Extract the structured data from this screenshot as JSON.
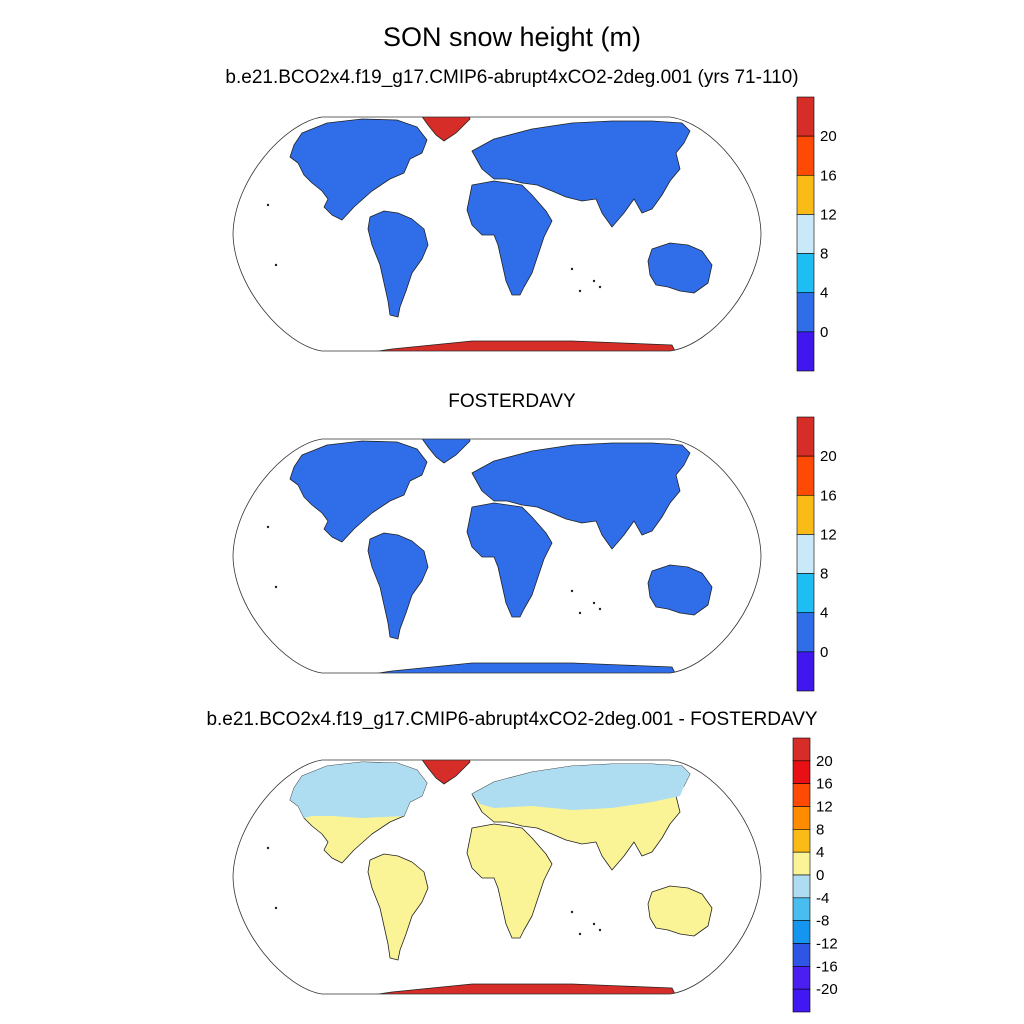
{
  "title": "SON snow height (m)",
  "panels": [
    {
      "title": "b.e21.BCO2x4.f19_g17.CMIP6-abrupt4xCO2-2deg.001 (yrs 71-110)",
      "colorbar": {
        "labels": [
          "20",
          "16",
          "12",
          "8",
          "4",
          "0"
        ],
        "colors": [
          "#d62d28",
          "#ff4a05",
          "#fbbb16",
          "#c9e8fa",
          "#1ebef4",
          "#2f6ee8",
          "#4117f0"
        ]
      },
      "fills": {
        "land": "#2f6ee8",
        "greenland": "#d62d28",
        "antarctica": "#d62d28"
      }
    },
    {
      "title": "FOSTERDAVY",
      "colorbar": {
        "labels": [
          "20",
          "16",
          "12",
          "8",
          "4",
          "0"
        ],
        "colors": [
          "#d62d28",
          "#ff4a05",
          "#fbbb16",
          "#c9e8fa",
          "#1ebef4",
          "#2f6ee8",
          "#4117f0"
        ]
      },
      "fills": {
        "land": "#2f6ee8",
        "greenland": "#2f6ee8",
        "antarctica": "#2f6ee8"
      }
    },
    {
      "title": "b.e21.BCO2x4.f19_g17.CMIP6-abrupt4xCO2-2deg.001 - FOSTERDAVY",
      "colorbar": {
        "labels": [
          "20",
          "16",
          "12",
          "8",
          "4",
          "0",
          "-4",
          "-8",
          "-12",
          "-16",
          "-20"
        ],
        "colors": [
          "#d62d28",
          "#e91015",
          "#ff4a05",
          "#ff8c00",
          "#fbbb16",
          "#fbf497",
          "#aedcf0",
          "#48bdf0",
          "#1496f0",
          "#2e55e6",
          "#4a1ff0",
          "#4118f3"
        ]
      },
      "fills": {
        "land": "#fbf497",
        "north": "#aedcf0",
        "greenland": "#d62d28",
        "antarctica": "#d62d28"
      }
    }
  ]
}
